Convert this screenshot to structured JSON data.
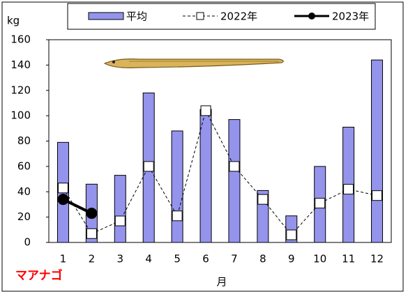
{
  "chart_data": {
    "type": "bar",
    "y_label": "kg",
    "x_label": "月",
    "annotation": "マアナゴ",
    "categories": [
      "1",
      "2",
      "3",
      "4",
      "5",
      "6",
      "7",
      "8",
      "9",
      "10",
      "11",
      "12"
    ],
    "series": [
      {
        "name": "平均",
        "type": "bar",
        "color": "#9494ec",
        "values": [
          79,
          46,
          53,
          118,
          88,
          105,
          97,
          41,
          21,
          60,
          91,
          144
        ]
      },
      {
        "name": "2022年",
        "type": "line",
        "dashed": true,
        "marker": "square",
        "color": "#000000",
        "values": [
          43,
          7,
          17,
          60,
          21,
          104,
          60,
          34,
          6,
          31,
          42,
          37
        ]
      },
      {
        "name": "2023年",
        "type": "line",
        "dashed": false,
        "marker": "circle",
        "color": "#000000",
        "values": [
          34,
          23,
          null,
          null,
          null,
          null,
          null,
          null,
          null,
          null,
          null,
          null
        ]
      }
    ],
    "ylim": [
      0,
      160
    ],
    "yticks": [
      0,
      20,
      40,
      60,
      80,
      100,
      120,
      140,
      160
    ],
    "grid": false
  }
}
